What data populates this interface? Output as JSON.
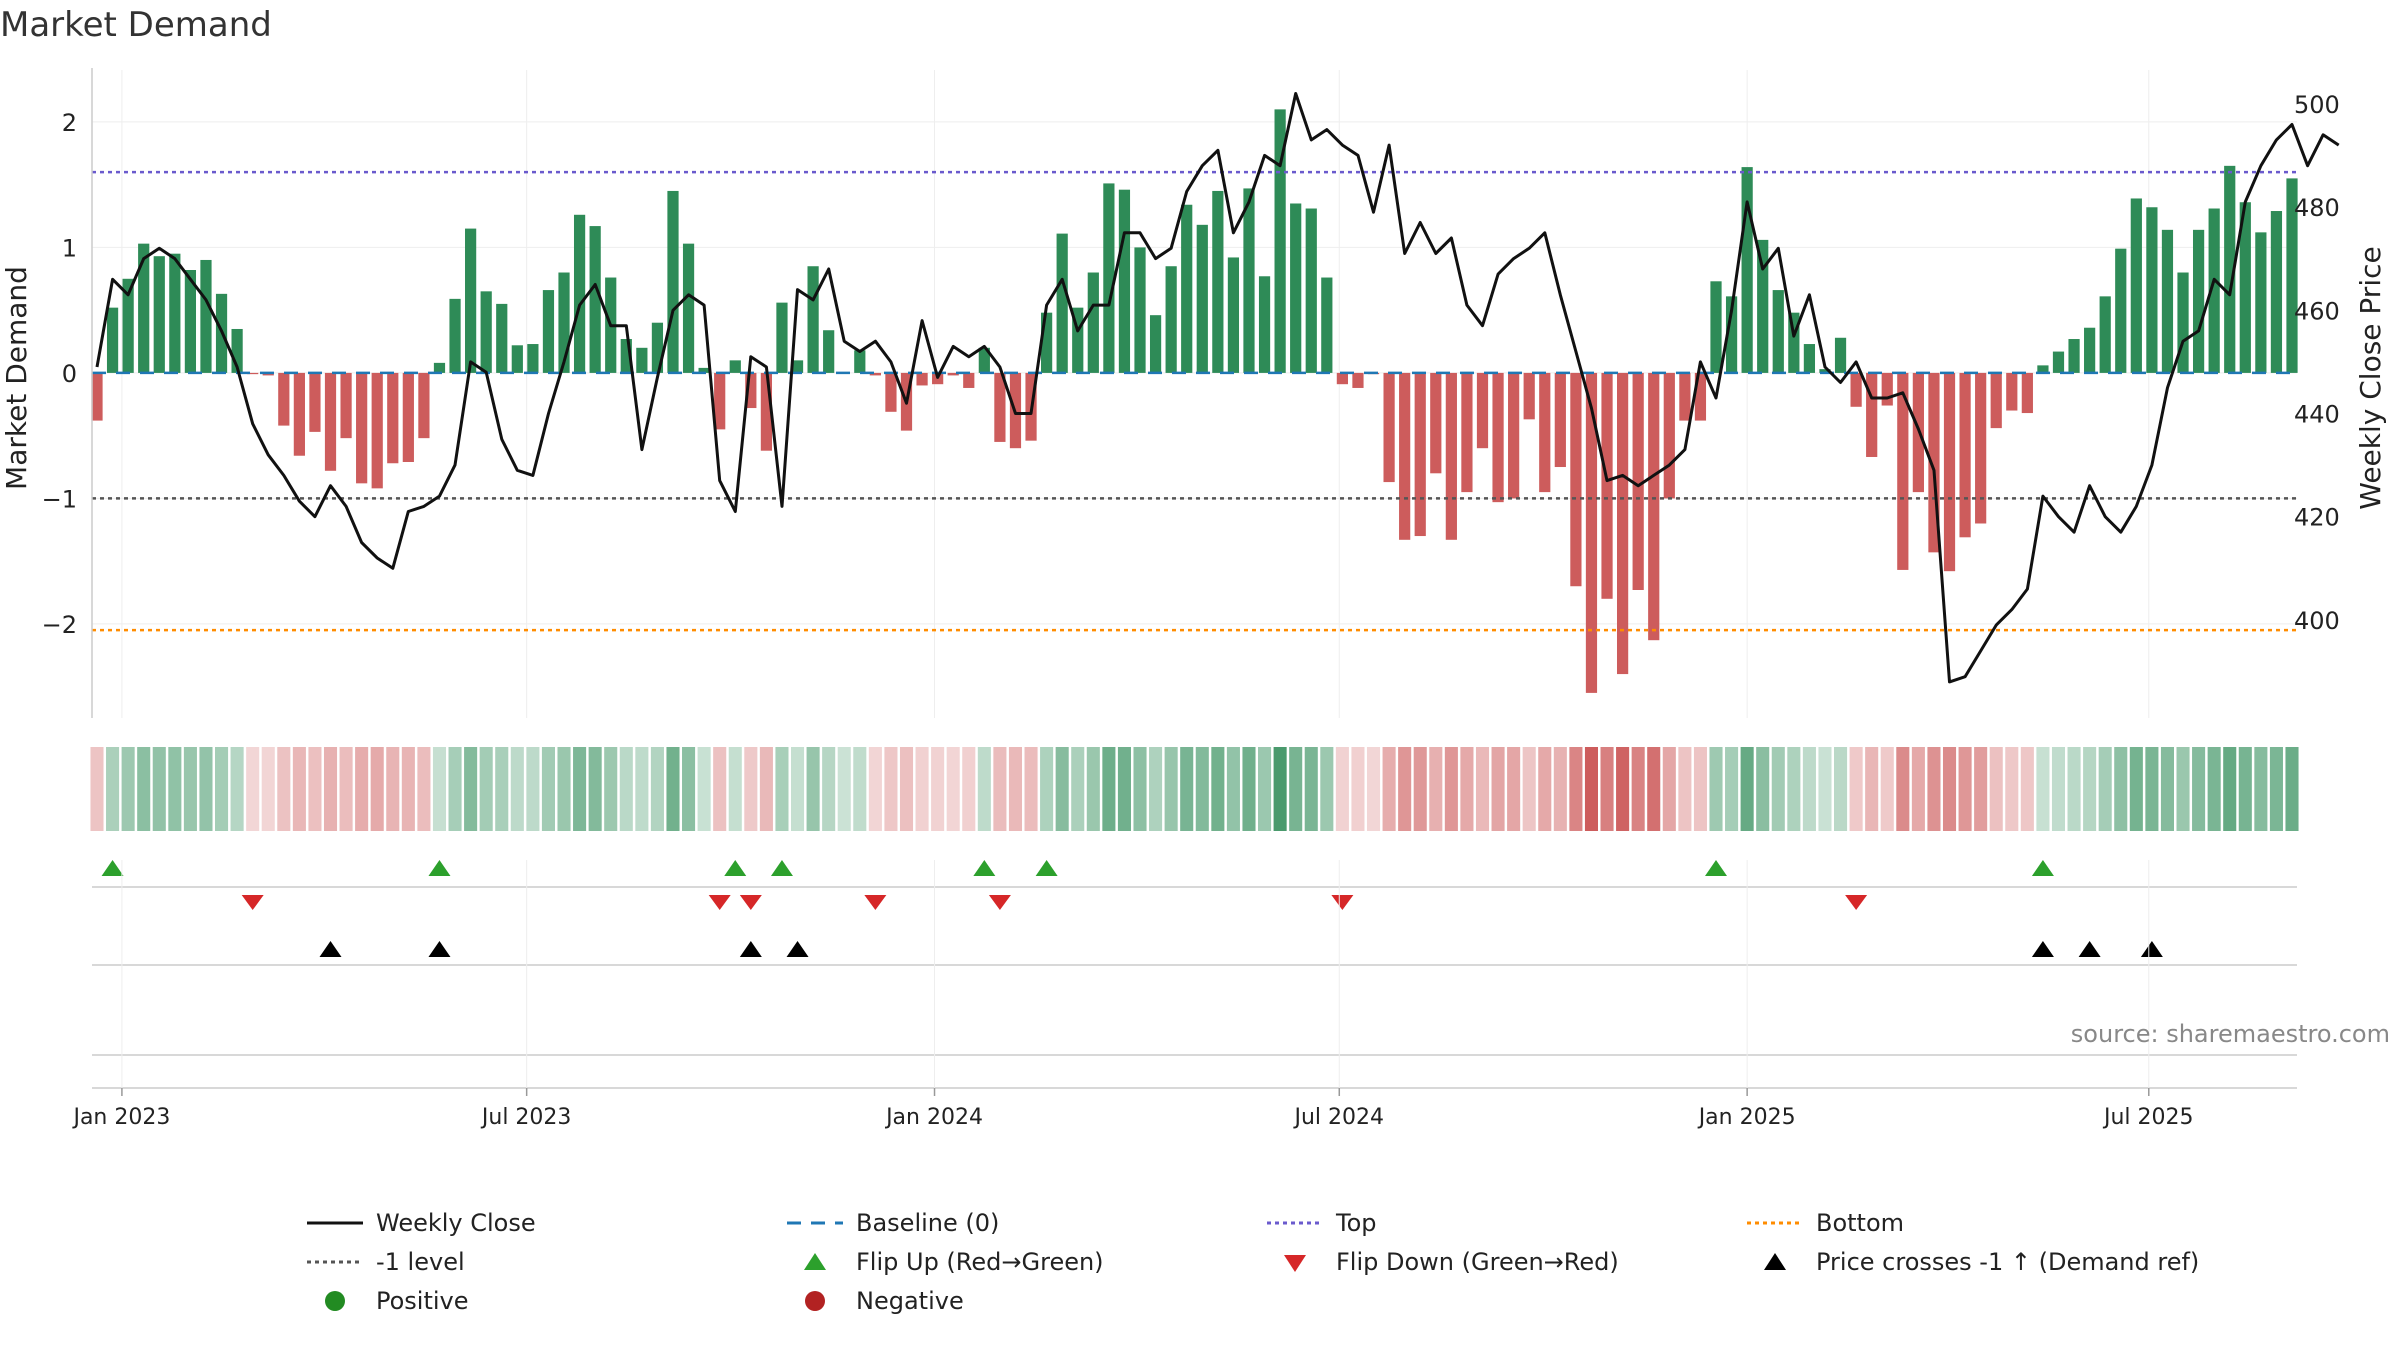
{
  "chart_data": {
    "type": "bar",
    "title": "Market Demand",
    "ylabel": "Market Demand",
    "y2label": "Weekly Close Price",
    "ylim": [
      -2.75,
      2.35
    ],
    "y2lim": [
      381,
      505
    ],
    "yticks": [
      2,
      1,
      0,
      -1,
      -2
    ],
    "ytick_labels": [
      "2",
      "1",
      "0",
      "−1",
      "−2"
    ],
    "y2ticks": [
      500,
      480,
      460,
      440,
      420,
      400
    ],
    "y2tick_labels": [
      "500",
      "480",
      "460",
      "440",
      "420",
      "400"
    ],
    "reference_lines": {
      "top": 1.6,
      "level_minus1": -1,
      "bottom": -2.05,
      "baseline": 0
    },
    "x_start": "2022-12-23",
    "week_step": 1,
    "xticks": [
      {
        "label": "Jan 2023",
        "week": 1.6
      },
      {
        "label": "Jul 2023",
        "week": 27.6
      },
      {
        "label": "Jan 2024",
        "week": 53.8
      },
      {
        "label": "Jul 2024",
        "week": 79.8
      },
      {
        "label": "Jan 2025",
        "week": 106.0
      },
      {
        "label": "Jul 2025",
        "week": 131.8
      }
    ],
    "demand": [
      -0.38,
      0.52,
      0.75,
      1.03,
      0.93,
      0.95,
      0.82,
      0.9,
      0.63,
      0.35,
      -0.01,
      -0.02,
      -0.42,
      -0.66,
      -0.47,
      -0.78,
      -0.52,
      -0.88,
      -0.92,
      -0.72,
      -0.71,
      -0.52,
      0.08,
      0.59,
      1.15,
      0.65,
      0.55,
      0.22,
      0.23,
      0.66,
      0.8,
      1.26,
      1.17,
      0.76,
      0.27,
      0.2,
      0.4,
      1.45,
      1.03,
      0.04,
      -0.45,
      0.1,
      -0.28,
      -0.62,
      0.56,
      0.1,
      0.85,
      0.34,
      0.0,
      0.18,
      -0.02,
      -0.31,
      -0.46,
      -0.1,
      -0.09,
      -0.02,
      -0.12,
      0.2,
      -0.55,
      -0.6,
      -0.54,
      0.48,
      1.11,
      0.52,
      0.8,
      1.51,
      1.46,
      1.0,
      0.46,
      0.85,
      1.34,
      1.18,
      1.45,
      0.92,
      1.47,
      0.77,
      2.1,
      1.35,
      1.31,
      0.76,
      -0.09,
      -0.12,
      -0.01,
      -0.87,
      -1.33,
      -1.3,
      -0.8,
      -1.33,
      -0.95,
      -0.6,
      -1.03,
      -1.0,
      -0.37,
      -0.95,
      -0.75,
      -1.7,
      -2.55,
      -1.8,
      -2.4,
      -1.73,
      -2.13,
      -1.0,
      -0.38,
      -0.38,
      0.73,
      0.61,
      1.64,
      1.06,
      0.66,
      0.48,
      0.23,
      0.03,
      0.28,
      -0.27,
      -0.67,
      -0.26,
      -1.57,
      -0.95,
      -1.43,
      -1.58,
      -1.31,
      -1.2,
      -0.44,
      -0.3,
      -0.32,
      0.06,
      0.17,
      0.27,
      0.36,
      0.61,
      0.99,
      1.39,
      1.32,
      1.14,
      0.8,
      1.14,
      1.31,
      1.65,
      1.36,
      1.12,
      1.29,
      1.55
    ],
    "close": [
      449,
      466,
      463,
      470,
      472,
      470,
      466,
      462,
      456,
      449,
      438,
      432,
      428,
      423,
      420,
      426,
      422,
      415,
      412,
      410,
      421,
      422,
      424,
      430,
      450,
      448,
      435,
      429,
      428,
      440,
      450,
      461,
      465,
      457,
      457,
      433,
      447,
      460,
      463,
      461,
      427,
      421,
      451,
      449,
      422,
      464,
      462,
      468,
      454,
      452,
      454,
      450,
      442,
      458,
      447,
      453,
      451,
      453,
      449,
      440,
      440,
      461,
      466,
      456,
      461,
      461,
      475,
      475,
      470,
      472,
      483,
      488,
      491,
      475,
      481,
      490,
      488,
      502,
      493,
      495,
      492,
      490,
      479,
      492,
      471,
      477,
      471,
      474,
      461,
      457,
      467,
      470,
      472,
      475,
      463,
      452,
      441,
      427,
      428,
      426,
      428,
      430,
      433,
      450,
      443,
      460,
      481,
      468,
      472,
      455,
      463,
      449,
      446,
      450,
      443,
      443,
      444,
      437,
      429,
      388,
      389,
      394,
      399,
      402,
      406,
      424,
      420,
      417,
      426,
      420,
      417,
      422,
      430,
      445,
      454,
      456,
      466,
      463,
      481,
      488,
      493,
      496,
      488,
      494,
      492
    ],
    "legend": [
      {
        "label": "Weekly Close",
        "symbol": "solid-line"
      },
      {
        "label": "Baseline (0)",
        "symbol": "dashed-line"
      },
      {
        "label": "Top",
        "symbol": "dotted-line"
      },
      {
        "label": "Bottom",
        "symbol": "dotted-line"
      },
      {
        "label": "-1 level",
        "symbol": "dotted-line"
      },
      {
        "label": "Flip Up (Red→Green)",
        "symbol": "triangle-up"
      },
      {
        "label": "Flip Down (Green→Red)",
        "symbol": "triangle-down"
      },
      {
        "label": "Price crosses -1 ↑ (Demand ref)",
        "symbol": "triangle-up"
      },
      {
        "label": "Positive",
        "symbol": "dot"
      },
      {
        "label": "Negative",
        "symbol": "dot"
      }
    ],
    "source_note": "source: sharemaestro.com"
  },
  "colors": {
    "positive_bar": "#2e8b57",
    "negative_bar": "#cd5c5c",
    "close_line": "#111111",
    "baseline": "#1f77b4",
    "top_line": "#6a5acd",
    "minus1_line": "#555555",
    "bottom_line": "#ff8c00",
    "flip_up": "#2ca02c",
    "flip_down": "#d62728",
    "cross_marker": "#000000",
    "positive_dot": "#228b22",
    "negative_dot": "#b22222",
    "axis": "#cccccc",
    "grid": "#eeeeee",
    "text": "#222222",
    "source_text": "#888888"
  }
}
